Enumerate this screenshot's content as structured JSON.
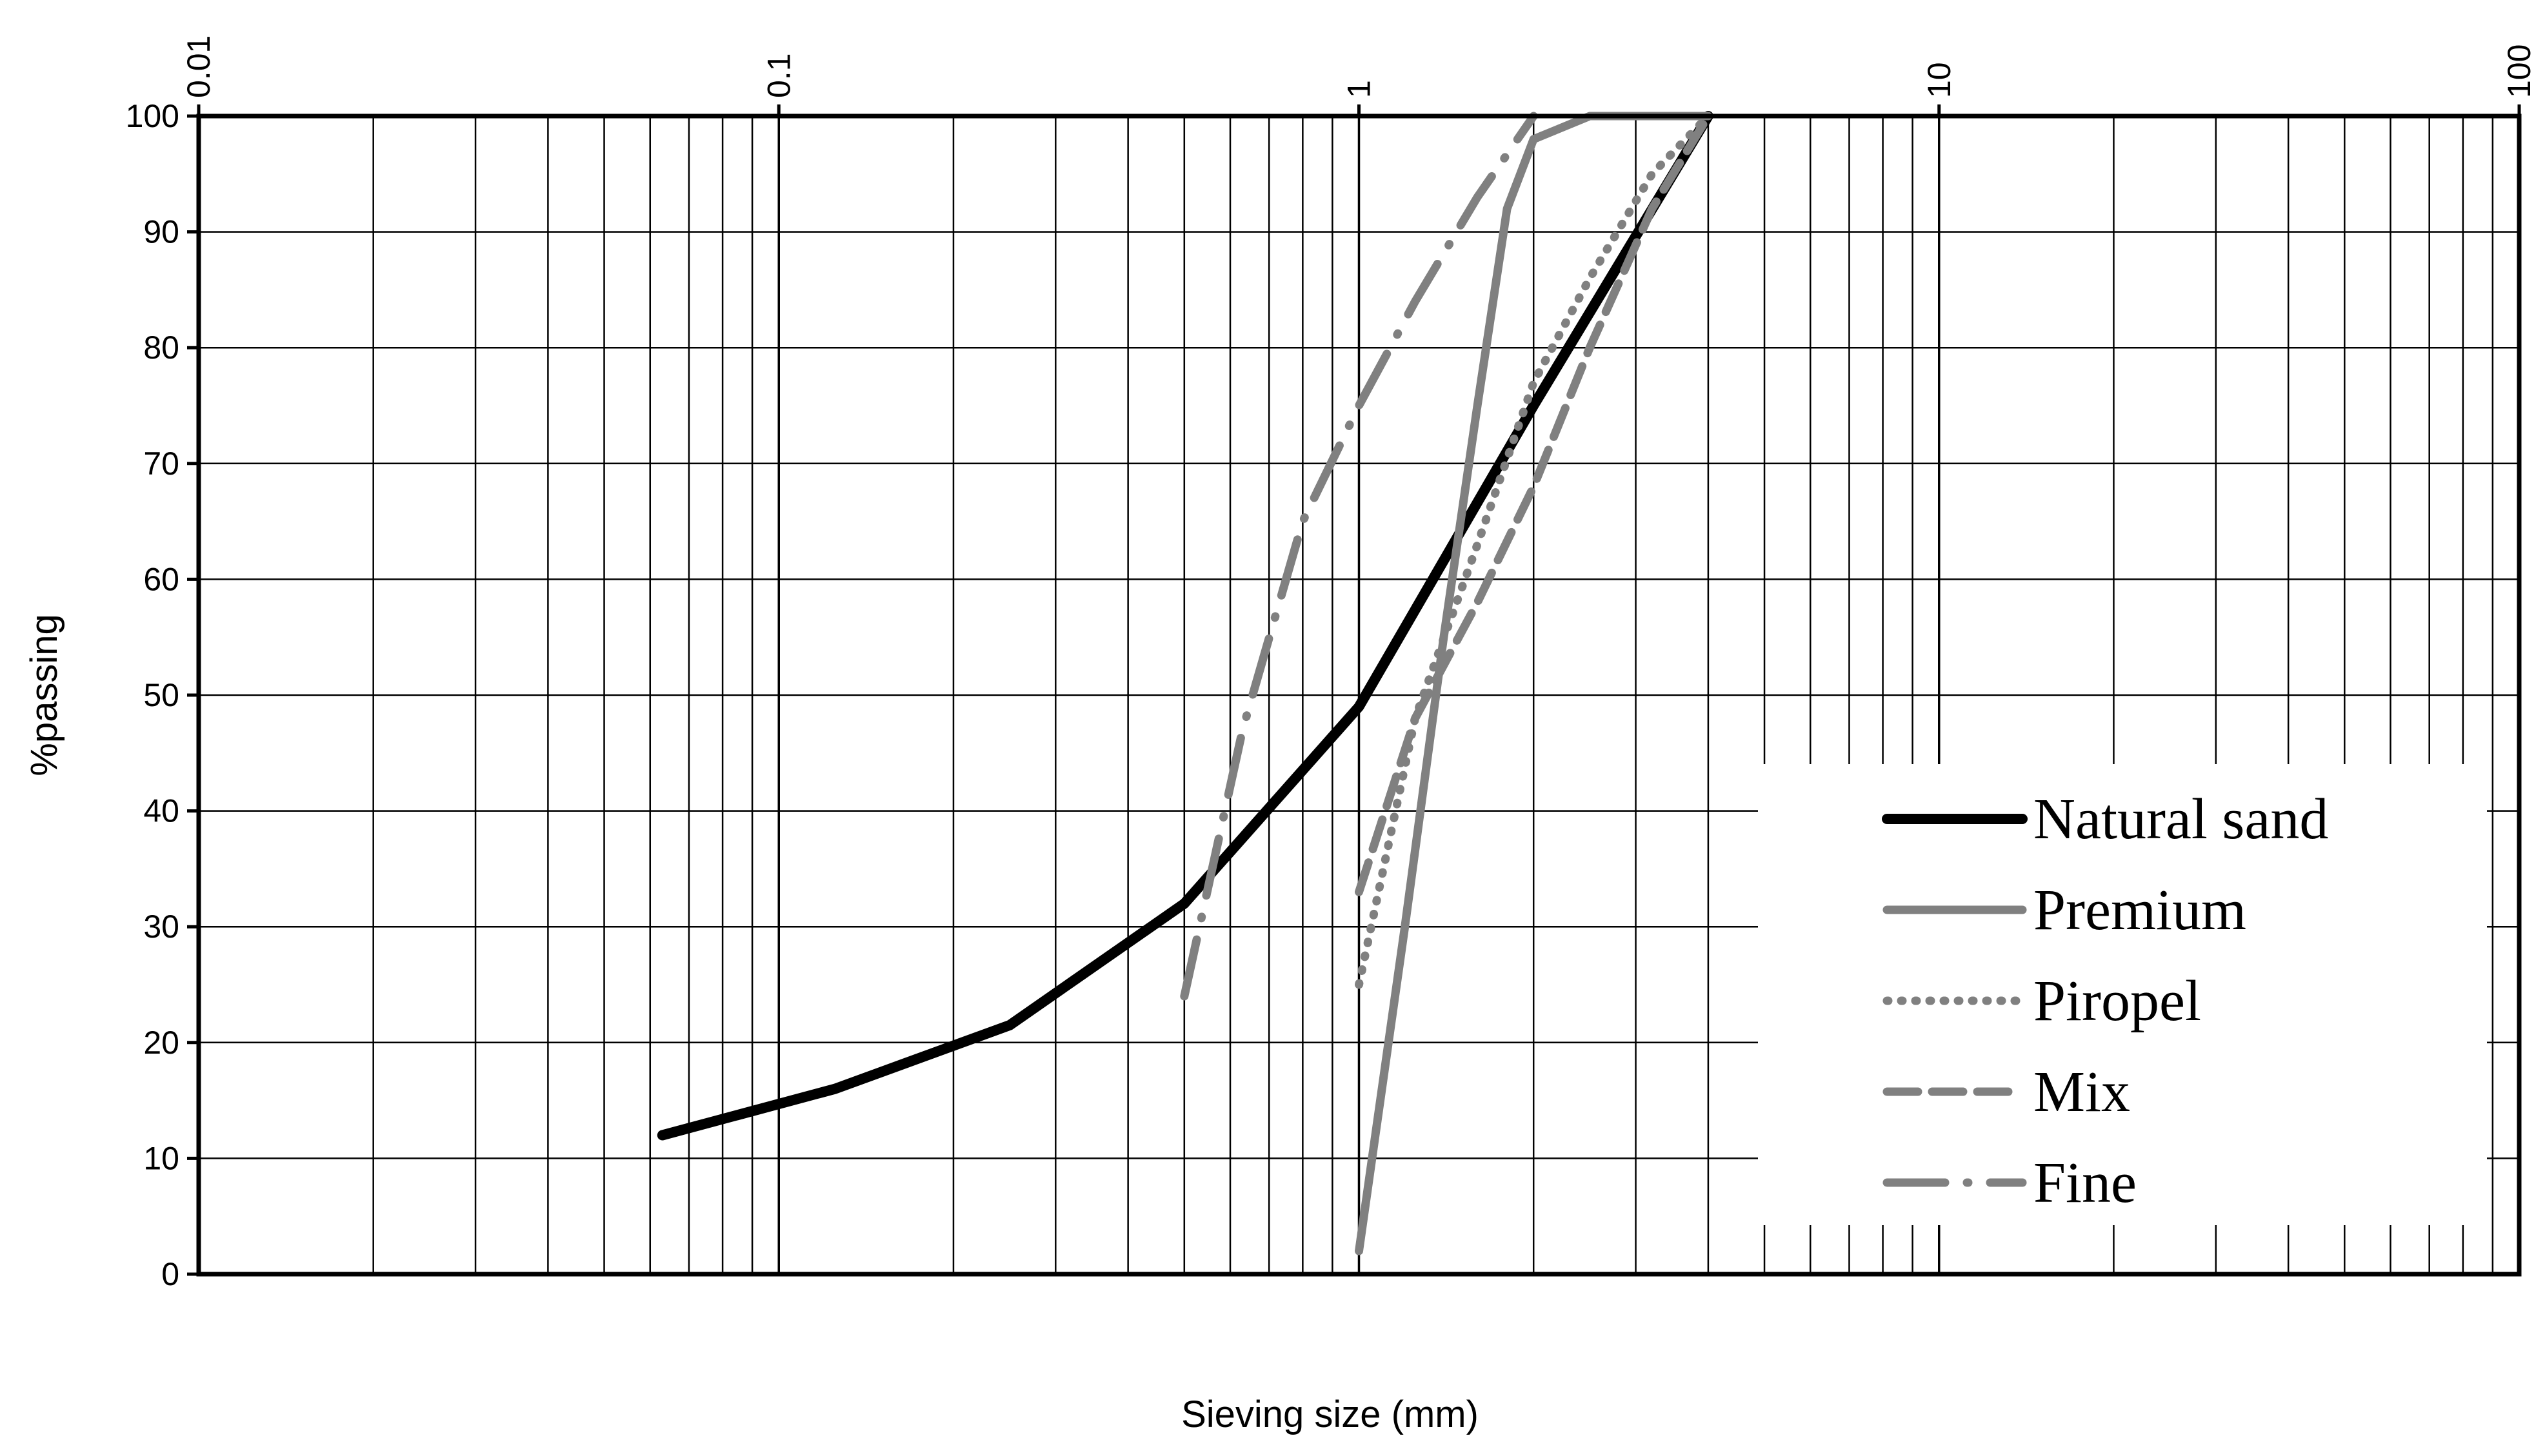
{
  "chart_data": {
    "type": "line",
    "title": "",
    "xlabel": "Sieving size (mm)",
    "ylabel": "%passing",
    "xscale": "log",
    "xlim": [
      0.01,
      100
    ],
    "ylim": [
      0,
      100
    ],
    "x_tick_labels": [
      "0.01",
      "0.1",
      "1",
      "10",
      "100"
    ],
    "x_ticks": [
      0.01,
      0.1,
      1,
      10,
      100
    ],
    "y_ticks": [
      0,
      10,
      20,
      30,
      40,
      50,
      60,
      70,
      80,
      90,
      100
    ],
    "y_tick_labels": [
      "0",
      "10",
      "20",
      "30",
      "40",
      "50",
      "60",
      "70",
      "80",
      "90",
      "100"
    ],
    "grid": true,
    "legend_position": "bottom-right",
    "series": [
      {
        "name": "Natural sand",
        "color": "#000000",
        "dash": "solid",
        "x": [
          0.063,
          0.125,
          0.25,
          0.5,
          1,
          2,
          4
        ],
        "y": [
          12,
          16,
          21.5,
          32,
          49,
          75,
          100
        ]
      },
      {
        "name": "Premium",
        "color": "#808080",
        "dash": "solid",
        "x": [
          1,
          1.2,
          1.4,
          1.6,
          1.8,
          2,
          2.5,
          4
        ],
        "y": [
          2,
          30,
          55,
          75,
          92,
          98,
          100,
          100
        ]
      },
      {
        "name": "Piropel",
        "color": "#808080",
        "dash": "dotted",
        "x": [
          1,
          1.25,
          1.6,
          2,
          2.5,
          3.2,
          4
        ],
        "y": [
          25,
          48,
          63,
          77,
          86,
          95,
          100
        ]
      },
      {
        "name": "Mix",
        "color": "#808080",
        "dash": "dashed",
        "x": [
          1,
          1.25,
          1.6,
          2,
          2.5,
          3.2,
          4
        ],
        "y": [
          33,
          48,
          58,
          68,
          80,
          92,
          100
        ]
      },
      {
        "name": "Fine",
        "color": "#808080",
        "dash": "long-dash-dot",
        "x": [
          0.5,
          0.63,
          0.8,
          1,
          1.25,
          1.6,
          2
        ],
        "y": [
          24,
          47,
          65,
          75,
          84,
          93,
          100
        ]
      }
    ]
  }
}
